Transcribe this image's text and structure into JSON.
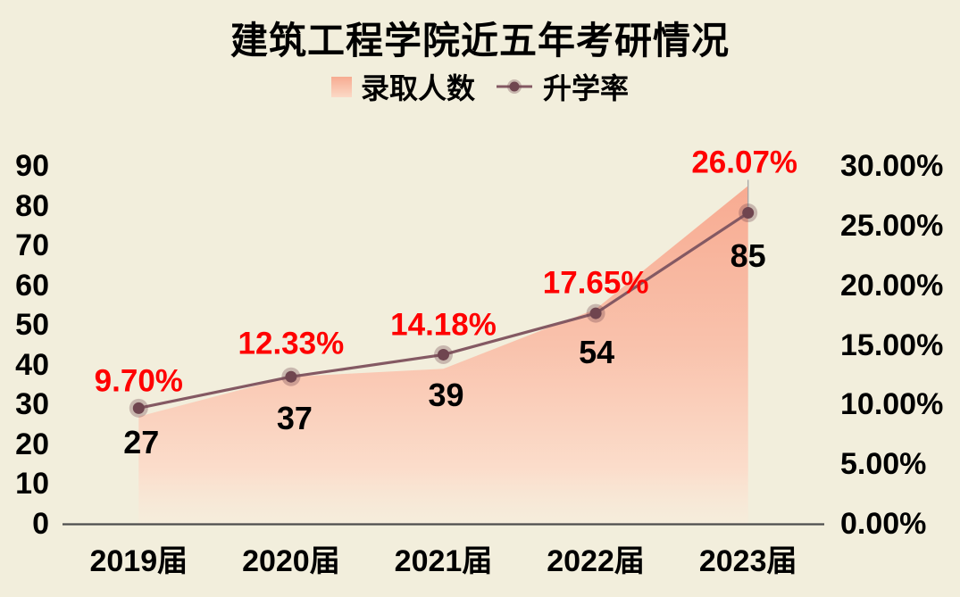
{
  "chart_data": {
    "type": "combo",
    "title": "建筑工程学院近五年考研情况",
    "categories": [
      "2019届",
      "2020届",
      "2021届",
      "2022届",
      "2023届"
    ],
    "series": [
      {
        "name": "录取人数",
        "type": "area",
        "axis": "left",
        "values": [
          27,
          37,
          39,
          54,
          85
        ],
        "data_labels": [
          "27",
          "37",
          "39",
          "54",
          "85"
        ]
      },
      {
        "name": "升学率",
        "type": "line",
        "axis": "right",
        "values": [
          9.7,
          12.33,
          14.18,
          17.65,
          26.07
        ],
        "data_labels": [
          "9.70%",
          "12.33%",
          "14.18%",
          "17.65%",
          "26.07%"
        ]
      }
    ],
    "left_axis": {
      "min": 0,
      "max": 90,
      "tick_labels": [
        "90",
        "80",
        "70",
        "60",
        "50",
        "40",
        "30",
        "20",
        "10",
        "0"
      ],
      "tick_values": [
        90,
        80,
        70,
        60,
        50,
        40,
        30,
        20,
        10,
        0
      ]
    },
    "right_axis": {
      "min": 0,
      "max": 30,
      "tick_labels": [
        "30.00%",
        "25.00%",
        "20.00%",
        "15.00%",
        "10.00%",
        "5.00%",
        "0.00%"
      ],
      "tick_values": [
        30,
        25,
        20,
        15,
        10,
        5,
        0
      ]
    },
    "legend_position": "top",
    "grid": "off",
    "colors": {
      "background": "#f2eedc",
      "area_gradient_top": "#f7a88e",
      "area_gradient_mid": "#f9c2ac",
      "area_gradient_low": "#fbddcb",
      "area_gradient_bottom": "#f9ebda",
      "line": "#845963",
      "marker": "#6f454f",
      "marker_halo": "rgba(111,69,79,0.32)",
      "pct_label": "#ff0000",
      "count_label": "#000000",
      "axis_line": "#4d4d4d",
      "leader_line": "#a6a6a6",
      "title": "#000000"
    }
  }
}
